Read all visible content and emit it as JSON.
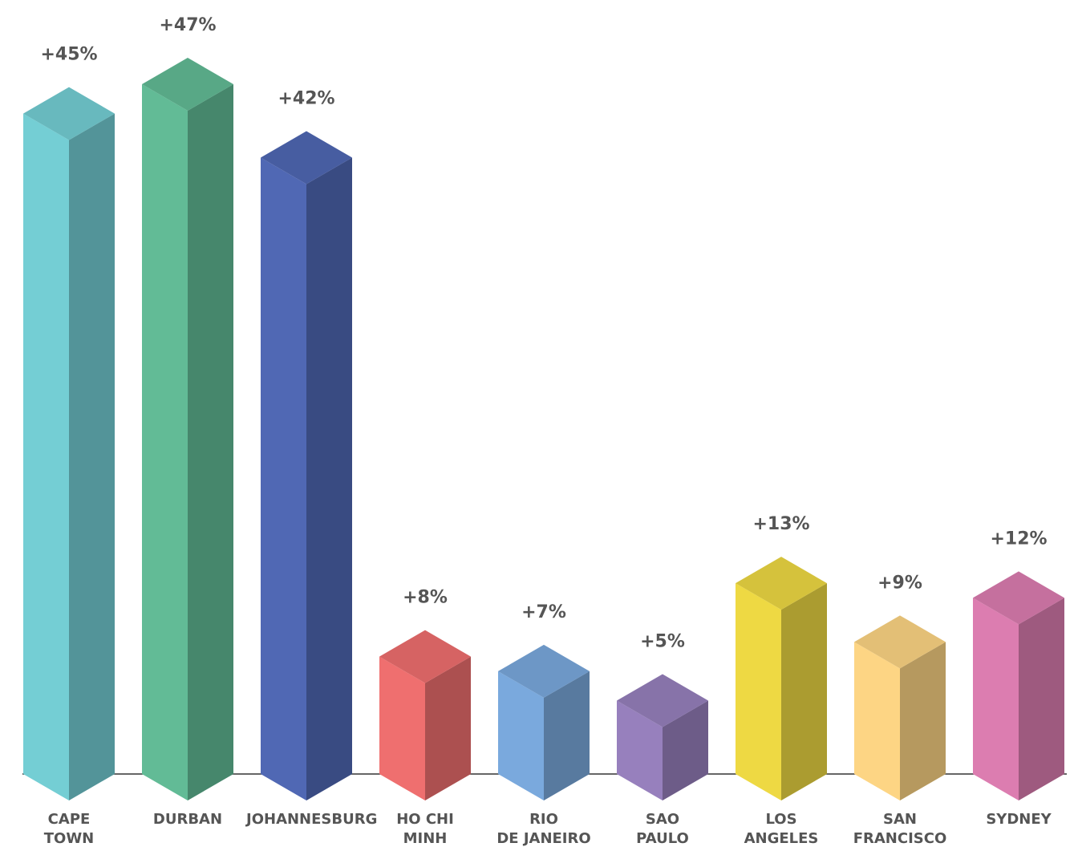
{
  "chart_data": {
    "type": "bar",
    "categories": [
      "CAPE\nTOWN",
      "DURBAN",
      "JOHANNESBURG",
      "HO CHI\nMINH",
      "RIO\nDE JANEIRO",
      "SAO\nPAULO",
      "LOS\nANGELES",
      "SAN\nFRANCISCO",
      "SYDNEY"
    ],
    "values": [
      45,
      47,
      42,
      8,
      7,
      5,
      13,
      9,
      12
    ],
    "value_labels": [
      "+45%",
      "+47%",
      "+42%",
      "+8%",
      "+7%",
      "+5%",
      "+13%",
      "+9%",
      "+12%"
    ],
    "colors": [
      "#74ced4",
      "#62bb96",
      "#5068b4",
      "#ef6f6f",
      "#7aa9dd",
      "#9780bd",
      "#eed943",
      "#fdd584",
      "#dc7db0"
    ]
  }
}
